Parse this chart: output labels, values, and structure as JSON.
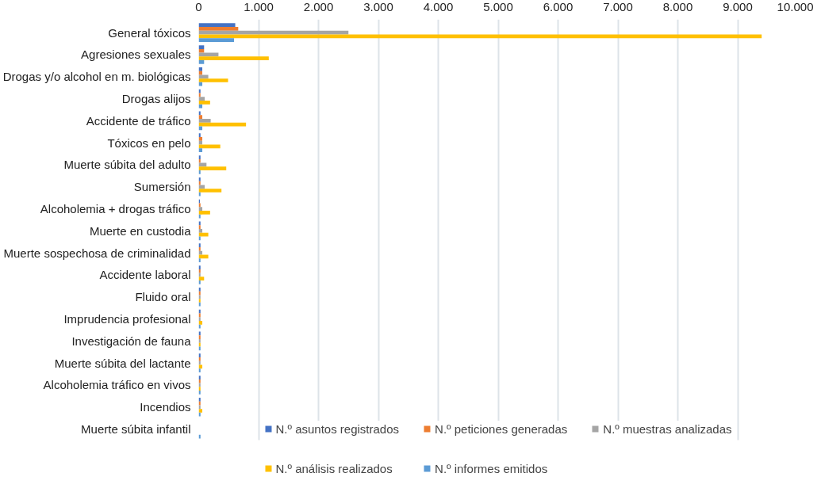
{
  "chart_data": {
    "type": "bar",
    "orientation": "horizontal",
    "categories": [
      "General tóxicos",
      "Agresiones sexuales",
      "Drogas y/o alcohol en m. biológicas",
      "Drogas alijos",
      "Accidente de tráfico",
      "Tóxicos en pelo",
      "Muerte súbita del adulto",
      "Sumersión",
      "Alcoholemia + drogas tráfico",
      "Muerte en custodia",
      "Muerte sospechosa de criminalidad",
      "Accidente laboral",
      "Fluido oral",
      "Imprudencia profesional",
      "Investigación de fauna",
      "Muerte súbita del lactante",
      "Alcoholemia tráfico en vivos",
      "Incendios",
      "Muerte súbita infantil"
    ],
    "series": [
      {
        "name": "N.º asuntos registrados",
        "color": "#4472c4",
        "values": [
          610,
          90,
          60,
          30,
          30,
          30,
          30,
          30,
          20,
          30,
          30,
          30,
          30,
          30,
          30,
          30,
          30,
          30,
          0
        ]
      },
      {
        "name": "N.º peticiones generadas",
        "color": "#ed7d31",
        "values": [
          660,
          90,
          60,
          30,
          60,
          60,
          30,
          30,
          30,
          30,
          30,
          30,
          30,
          30,
          30,
          30,
          30,
          30,
          0
        ]
      },
      {
        "name": "N.º muestras analizadas",
        "color": "#a5a5a5",
        "values": [
          2500,
          330,
          160,
          100,
          200,
          60,
          130,
          100,
          60,
          60,
          60,
          30,
          30,
          30,
          30,
          30,
          30,
          30,
          0
        ]
      },
      {
        "name": "N.º análisis realizados",
        "color": "#ffc000",
        "values": [
          9400,
          1170,
          490,
          190,
          790,
          360,
          460,
          380,
          190,
          160,
          160,
          90,
          30,
          60,
          30,
          60,
          30,
          60,
          0
        ]
      },
      {
        "name": "N.º informes emitidos",
        "color": "#5b9bd5",
        "values": [
          590,
          90,
          60,
          60,
          60,
          60,
          30,
          30,
          30,
          30,
          30,
          30,
          30,
          30,
          30,
          30,
          30,
          30,
          30
        ]
      }
    ],
    "xlim": [
      0,
      10000
    ],
    "xticks": [
      0,
      {
        "value": 1000,
        "label": "1.000"
      },
      {
        "value": 2000,
        "label": "2.000"
      },
      {
        "value": 3000,
        "label": "3.000"
      },
      {
        "value": 4000,
        "label": "4.000"
      },
      {
        "value": 5000,
        "label": "5.000"
      },
      {
        "value": 6000,
        "label": "6.000"
      },
      {
        "value": 7000,
        "label": "7.000"
      },
      {
        "value": 8000,
        "label": "8.000"
      },
      {
        "value": 9000,
        "label": "9.000"
      },
      {
        "value": 10000,
        "label": "10.000"
      }
    ],
    "grid": "x",
    "legend": "bottom"
  }
}
